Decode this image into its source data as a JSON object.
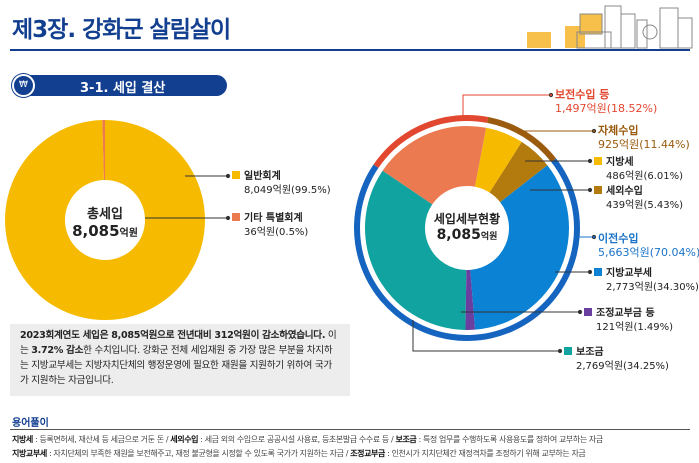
{
  "header": {
    "title": "제3장. 강화군 살림살이",
    "section_icon": "home-won-icon",
    "section_label": "3-1. 세입 결산"
  },
  "colors": {
    "navy": "#123f8f",
    "yellow": "#f6bb00",
    "coral": "#ec7a50",
    "red": "#e2472f",
    "brown": "#b37a0e",
    "brown_ring": "#9a5b0e",
    "blue": "#0b82d4",
    "blue_ring": "#1565c0",
    "purple": "#6a3fa0",
    "teal": "#10a39f"
  },
  "chart_data": [
    {
      "type": "pie",
      "title": "총세입",
      "total_value": "8,085",
      "total_unit": "억원",
      "slices": [
        {
          "name": "일반회계",
          "value": 8049,
          "value_label": "8,049억원(99.5%)",
          "color": "#f6bb00"
        },
        {
          "name": "기타 특별회계",
          "value": 36,
          "value_label": "36억원(0.5%)",
          "color": "#ec7a50"
        }
      ]
    },
    {
      "type": "pie",
      "title": "세입세부현황",
      "total_value": "8,085",
      "total_unit": "억원",
      "groups": [
        {
          "name": "보전수입 등",
          "value": 1497,
          "value_label": "1,497억원(18.52%)",
          "color": "#e2472f"
        },
        {
          "name": "자체수입",
          "value": 925,
          "value_label": "925억원(11.44%)",
          "color": "#9a5b0e"
        },
        {
          "name": "이전수입",
          "value": 5663,
          "value_label": "5,663억원(70.04%)",
          "color": "#1565c0"
        }
      ],
      "slices": [
        {
          "name": "지방교부세",
          "value": 2773,
          "value_label": "2,773억원(34.30%)",
          "color": "#0b82d4"
        },
        {
          "name": "조정교부금 등",
          "value": 121,
          "value_label": "121억원(1.49%)",
          "color": "#6a3fa0"
        },
        {
          "name": "보조금",
          "value": 2769,
          "value_label": "2,769억원(34.25%)",
          "color": "#10a39f"
        },
        {
          "name": "보전수입 등",
          "value": 1497,
          "value_label": "1,497억원(18.52%)",
          "color": "#ec7a50"
        },
        {
          "name": "지방세",
          "value": 486,
          "value_label": "486억원(6.01%)",
          "color": "#f6bb00"
        },
        {
          "name": "세외수입",
          "value": 439,
          "value_label": "439억원(5.43%)",
          "color": "#b37a0e"
        }
      ]
    }
  ],
  "note": {
    "bold1": "2023회계연도 세입은 8,085억원으로 전년대비 312억원이 감소하였습니다.",
    "text1": " 이는 ",
    "bold2": "3.72% 감소",
    "text2": "한 수치입니다. 강화군 전체 세입재원 중 가장 많은 부분을 차지하는 지방교부세는 지방자치단체의 행정운영에 필요한 재원을 지원하기 위하여 국가가 지원하는 자금입니다."
  },
  "glossary": {
    "title": "용어풀이",
    "rows": [
      [
        {
          "term": "지방세",
          "desc": " : 등록면허세, 재산세 등 세금으로 거둔 돈 / "
        },
        {
          "term": "세외수입",
          "desc": " : 세금 외의 수입으로 공공시설 사용료, 등초본발급 수수료 등 / "
        },
        {
          "term": "보조금",
          "desc": " : 특정 업무를 수행하도록 사용용도를 정하여 교부하는 자금"
        }
      ],
      [
        {
          "term": "지방교부세",
          "desc": " : 자치단체의 부족한 재원을 보전해주고, 재정 불균형을 시정할 수 있도록 국가가 지원하는 자금 / "
        },
        {
          "term": "조정교부금",
          "desc": " : 인천시가 지치단체간 재정격차를 조정하기 위해 교부하는 자금"
        }
      ]
    ]
  }
}
